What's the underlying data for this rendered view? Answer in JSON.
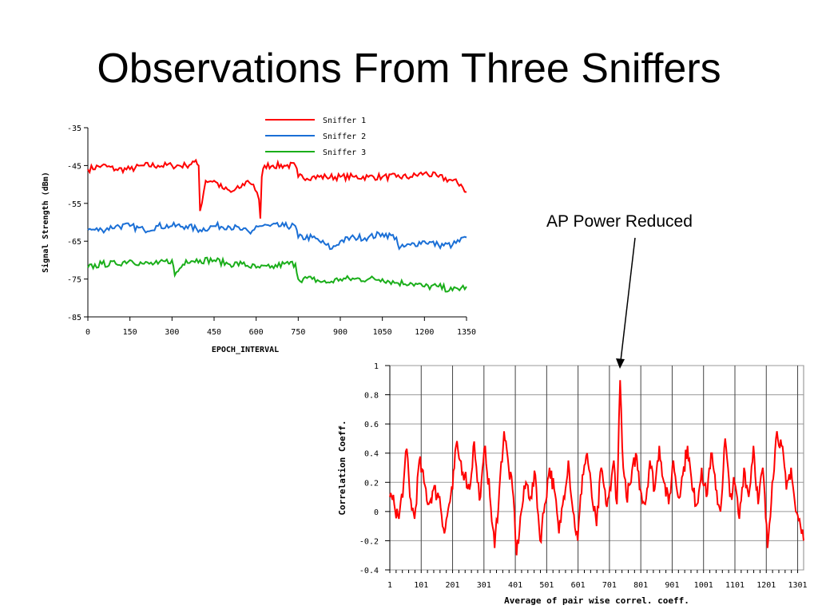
{
  "slide": {
    "title": "Observations From Three Sniffers",
    "annotation": "AP Power Reduced"
  },
  "colors": {
    "sniffer1": "#ff0000",
    "sniffer2": "#1a6fd6",
    "sniffer3": "#1aae1a",
    "correlation": "#ff0000",
    "grid": "#999999"
  },
  "chart_data": [
    {
      "type": "line",
      "xlabel": "EPOCH_INTERVAL",
      "ylabel": "Signal Strength (dBm)",
      "xlim": [
        0,
        1350
      ],
      "ylim": [
        -85,
        -35
      ],
      "xticks": [
        0,
        150,
        300,
        450,
        600,
        750,
        900,
        1050,
        1200,
        1350
      ],
      "yticks": [
        -35,
        -45,
        -55,
        -65,
        -75,
        -85
      ],
      "legend_position": "top-right",
      "grid": false,
      "series": [
        {
          "name": "Sniffer 1",
          "x": [
            0,
            50,
            100,
            150,
            200,
            250,
            300,
            350,
            380,
            395,
            400,
            420,
            450,
            480,
            510,
            540,
            570,
            590,
            610,
            615,
            620,
            630,
            660,
            700,
            740,
            750,
            800,
            850,
            900,
            950,
            1000,
            1050,
            1100,
            1150,
            1200,
            1250,
            1300,
            1330,
            1350
          ],
          "y": [
            -46,
            -45,
            -46,
            -46,
            -45,
            -45,
            -45,
            -45,
            -44,
            -45,
            -57,
            -49,
            -49,
            -51,
            -52,
            -51,
            -49,
            -50,
            -54,
            -59,
            -48,
            -45,
            -45,
            -45,
            -45,
            -48,
            -48,
            -48,
            -48,
            -48,
            -48,
            -48,
            -48,
            -48,
            -47,
            -48,
            -49,
            -50,
            -52
          ]
        },
        {
          "name": "Sniffer 2",
          "x": [
            0,
            50,
            100,
            150,
            200,
            250,
            300,
            350,
            400,
            450,
            500,
            550,
            580,
            600,
            650,
            700,
            740,
            750,
            800,
            850,
            870,
            900,
            950,
            1000,
            1050,
            1100,
            1110,
            1150,
            1200,
            1250,
            1300,
            1350
          ],
          "y": [
            -62,
            -62,
            -61,
            -61,
            -62,
            -61,
            -61,
            -61,
            -62,
            -61,
            -61,
            -62,
            -63,
            -61,
            -61,
            -61,
            -61,
            -64,
            -64,
            -66,
            -67,
            -65,
            -64,
            -64,
            -63,
            -64,
            -67,
            -66,
            -65,
            -66,
            -66,
            -64
          ]
        },
        {
          "name": "Sniffer 3",
          "x": [
            0,
            50,
            100,
            150,
            200,
            250,
            300,
            310,
            350,
            400,
            450,
            500,
            550,
            600,
            650,
            700,
            740,
            750,
            800,
            850,
            900,
            950,
            1000,
            1050,
            1100,
            1150,
            1200,
            1250,
            1300,
            1350
          ],
          "y": [
            -72,
            -71,
            -71,
            -70,
            -71,
            -71,
            -70,
            -74,
            -70,
            -70,
            -70,
            -71,
            -71,
            -72,
            -72,
            -71,
            -71,
            -75,
            -75,
            -76,
            -75,
            -75,
            -75,
            -75,
            -76,
            -76,
            -77,
            -77,
            -78,
            -77
          ]
        }
      ]
    },
    {
      "type": "line",
      "xlabel": "Average of pair wise correl. coeff.",
      "ylabel": "Correlation Coeff.",
      "xlim": [
        1,
        1320
      ],
      "ylim": [
        -0.4,
        1
      ],
      "xticks": [
        1,
        101,
        201,
        301,
        401,
        501,
        601,
        701,
        801,
        901,
        1001,
        1101,
        1201,
        1301
      ],
      "yticks": [
        1,
        0.8,
        0.6,
        0.4,
        0.2,
        0,
        -0.2,
        -0.4
      ],
      "grid": true,
      "series": [
        {
          "name": "",
          "x": [
            1,
            15,
            30,
            45,
            55,
            65,
            80,
            95,
            110,
            125,
            140,
            160,
            175,
            190,
            201,
            212,
            225,
            240,
            255,
            270,
            280,
            290,
            305,
            320,
            335,
            350,
            365,
            380,
            395,
            405,
            420,
            435,
            450,
            465,
            480,
            495,
            510,
            525,
            540,
            555,
            570,
            585,
            600,
            615,
            630,
            645,
            660,
            675,
            690,
            705,
            715,
            725,
            735,
            745,
            755,
            770,
            785,
            800,
            815,
            830,
            845,
            860,
            875,
            890,
            905,
            920,
            935,
            950,
            965,
            980,
            995,
            1010,
            1025,
            1040,
            1055,
            1070,
            1085,
            1100,
            1115,
            1130,
            1145,
            1160,
            1175,
            1190,
            1205,
            1220,
            1235,
            1250,
            1265,
            1280,
            1295,
            1310,
            1320
          ],
          "y": [
            0.1,
            0.05,
            -0.05,
            0.2,
            0.43,
            0.1,
            -0.05,
            0.35,
            0.2,
            0.05,
            0.15,
            0.1,
            -0.15,
            0.05,
            0.15,
            0.45,
            0.35,
            0.25,
            0.15,
            0.48,
            0.2,
            0.1,
            0.45,
            0.1,
            -0.25,
            0.15,
            0.55,
            0.3,
            0.1,
            -0.3,
            0.0,
            0.2,
            0.1,
            0.25,
            -0.2,
            0.05,
            0.3,
            0.15,
            -0.15,
            0.1,
            0.35,
            0.0,
            -0.2,
            0.25,
            0.4,
            0.1,
            -0.1,
            0.3,
            0.05,
            0.15,
            0.35,
            0.05,
            0.9,
            0.3,
            0.1,
            0.2,
            0.4,
            0.15,
            0.05,
            0.35,
            0.15,
            0.45,
            0.2,
            0.05,
            0.35,
            0.1,
            0.25,
            0.45,
            0.15,
            0.05,
            0.3,
            0.1,
            0.4,
            0.15,
            0.0,
            0.5,
            0.1,
            0.2,
            -0.05,
            0.3,
            0.1,
            0.45,
            0.05,
            0.3,
            -0.25,
            0.2,
            0.55,
            0.45,
            0.15,
            0.3,
            0.0,
            -0.1,
            -0.2
          ]
        }
      ]
    }
  ]
}
